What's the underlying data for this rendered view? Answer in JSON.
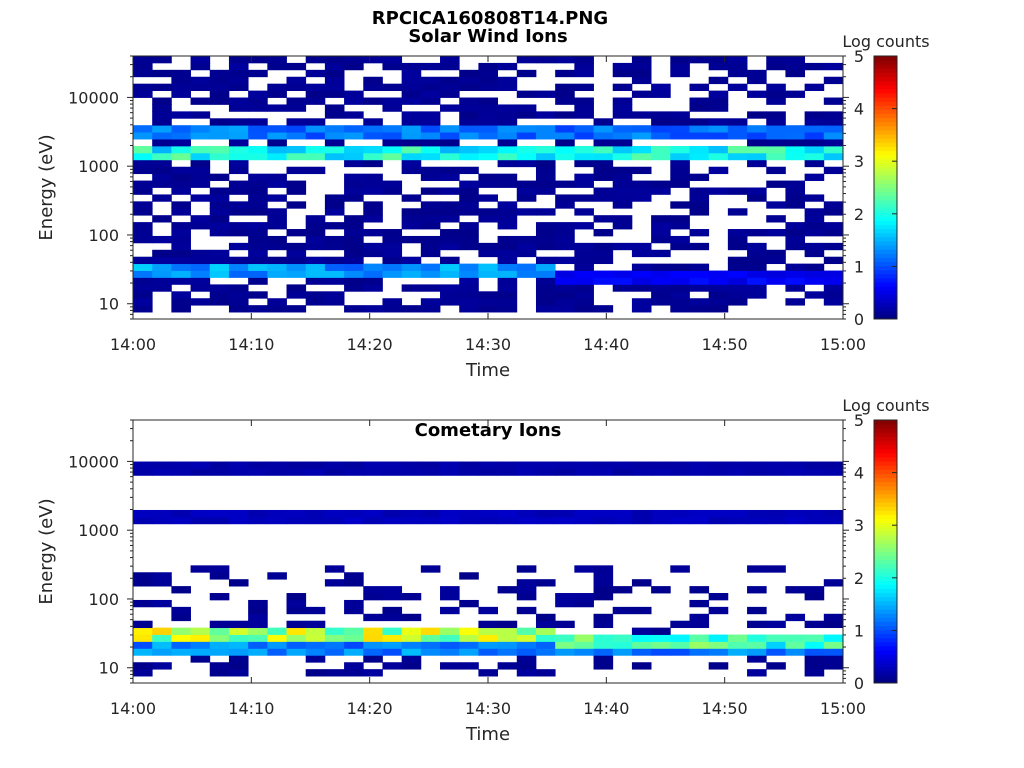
{
  "figure_title": "RPCICA160808T14.PNG",
  "chart_data": [
    {
      "type": "heatmap",
      "title": "Solar Wind Ions",
      "xlabel": "Time",
      "ylabel": "Energy (eV)",
      "x_range": [
        "14:00",
        "15:00"
      ],
      "x_ticks": [
        "14:00",
        "14:10",
        "14:20",
        "14:30",
        "14:40",
        "14:50",
        "15:00"
      ],
      "y_scale": "log",
      "y_range": [
        6,
        40000
      ],
      "y_ticks": [
        "10",
        "100",
        "1000",
        "10000"
      ],
      "colorbar": {
        "label": "Log counts",
        "range": [
          0,
          5
        ],
        "ticks": [
          "0",
          "1",
          "2",
          "3",
          "4",
          "5"
        ],
        "colormap": "jet"
      },
      "grid": false,
      "bands": [
        {
          "energy_eV": 3200,
          "log_counts": 1.2,
          "from": "14:00",
          "to": "15:00"
        },
        {
          "energy_eV": 1650,
          "log_counts": 2.0,
          "from": "14:00",
          "to": "15:00"
        },
        {
          "energy_eV": 30,
          "log_counts": 1.4,
          "from": "14:00",
          "to": "14:35"
        },
        {
          "energy_eV": 25,
          "log_counts": 0.6,
          "from": "14:35",
          "to": "15:00"
        }
      ],
      "background": {
        "energy_min_eV": 7,
        "energy_max_eV": 40000,
        "log_counts": 0.1,
        "coverage": 0.6
      }
    },
    {
      "type": "heatmap",
      "title": "Cometary Ions",
      "xlabel": "Time",
      "ylabel": "Energy (eV)",
      "x_range": [
        "14:00",
        "15:00"
      ],
      "x_ticks": [
        "14:00",
        "14:10",
        "14:20",
        "14:30",
        "14:40",
        "14:50",
        "15:00"
      ],
      "y_scale": "log",
      "y_range": [
        6,
        40000
      ],
      "y_ticks": [
        "10",
        "100",
        "1000",
        "10000"
      ],
      "colorbar": {
        "label": "Log counts",
        "range": [
          0,
          5
        ],
        "ticks": [
          "0",
          "1",
          "2",
          "3",
          "4",
          "5"
        ],
        "colormap": "jet"
      },
      "grid": false,
      "bands": [
        {
          "energy_eV": 1650,
          "log_counts": 0.3,
          "from": "14:00",
          "to": "15:00"
        },
        {
          "energy_eV": 8000,
          "log_counts": 0.2,
          "from": "14:00",
          "to": "15:00"
        },
        {
          "energy_eV": 30,
          "log_counts": 2.8,
          "from": "14:00",
          "to": "14:35"
        },
        {
          "energy_eV": 25,
          "log_counts": 2.2,
          "from": "14:35",
          "to": "15:00"
        },
        {
          "energy_eV": 18,
          "log_counts": 1.3,
          "from": "14:00",
          "to": "15:00"
        }
      ],
      "background": {
        "energy_min_eV": 7,
        "energy_max_eV": 300,
        "log_counts": 0.1,
        "coverage": 0.3
      }
    }
  ]
}
